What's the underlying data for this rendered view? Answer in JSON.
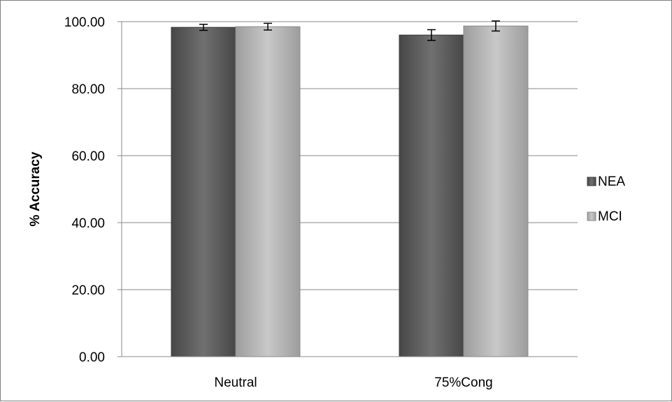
{
  "chart_data": {
    "type": "bar",
    "title": "",
    "xlabel": "",
    "ylabel": "% Accuracy",
    "categories": [
      "Neutral",
      "75%Cong"
    ],
    "series": [
      {
        "name": "NEA",
        "values": [
          98.3,
          96.0
        ],
        "error": [
          0.9,
          1.6
        ],
        "color": "#5f5f5f"
      },
      {
        "name": "MCI",
        "values": [
          98.5,
          98.7
        ],
        "error": [
          1.0,
          1.5
        ],
        "color": "#b6b6b6"
      }
    ],
    "ylim": [
      0,
      100
    ],
    "yticks": [
      "0.00",
      "20.00",
      "40.00",
      "60.00",
      "80.00",
      "100.00"
    ],
    "grid": true,
    "legend_position": "right"
  }
}
